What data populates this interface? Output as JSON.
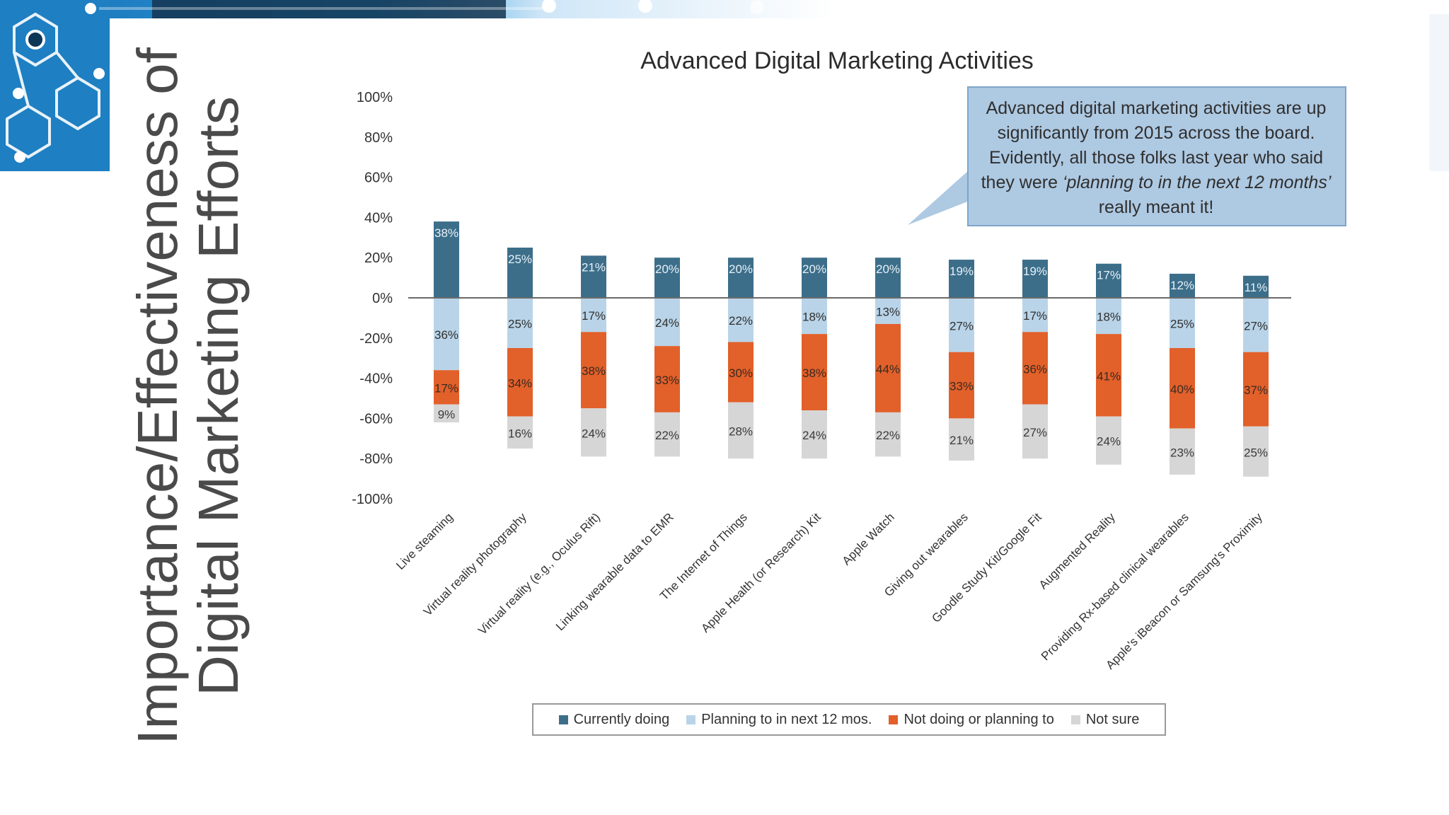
{
  "slide": {
    "title_line1": "Importance/Effectiveness of",
    "title_line2": "Digital Marketing Efforts"
  },
  "callout": {
    "part1": "Advanced digital marketing activities are up significantly from 2015 across the board.  Evidently, all those folks last year who said they were ",
    "emphasis": "‘planning to in the next 12 months’",
    "part2": " really meant it!"
  },
  "colors": {
    "currently_doing": "#3c6e8a",
    "planning": "#b9d4e8",
    "not_doing": "#e2602a",
    "not_sure": "#d6d6d6",
    "callout_fill": "#aec9e2",
    "callout_border": "#7ea6c8"
  },
  "chart_data": {
    "type": "bar",
    "title": "Advanced Digital Marketing Activities",
    "xlabel": "",
    "ylabel": "",
    "ylim": [
      -100,
      100
    ],
    "yticks": [
      "100%",
      "80%",
      "60%",
      "40%",
      "20%",
      "0%",
      "-20%",
      "-40%",
      "-60%",
      "-80%",
      "-100%"
    ],
    "stacked": true,
    "grid": false,
    "legend_position": "bottom",
    "categories": [
      "Live steaming",
      "Virtual reality photography",
      "Virtual reality (e.g., Oculus Rift)",
      "Linking wearable data to EMR",
      "The Internet of Things",
      "Apple Health (or Research) Kit",
      "Apple Watch",
      "Giving out wearables",
      "Goodle Study Kit/Google Fit",
      "Augmented Reality",
      "Providing Rx-based clinical wearables",
      "Apple's iBeacon or Samsung's Proximity"
    ],
    "series": [
      {
        "name": "Currently doing",
        "values": [
          38,
          25,
          21,
          20,
          20,
          20,
          20,
          19,
          19,
          17,
          12,
          11
        ]
      },
      {
        "name": "Planning to in next 12 mos.",
        "values": [
          36,
          25,
          17,
          24,
          22,
          18,
          13,
          27,
          17,
          18,
          25,
          27
        ]
      },
      {
        "name": "Not doing or planning to",
        "values": [
          17,
          34,
          38,
          33,
          30,
          38,
          44,
          33,
          36,
          41,
          40,
          37
        ]
      },
      {
        "name": "Not sure",
        "values": [
          9,
          16,
          24,
          22,
          28,
          24,
          22,
          21,
          27,
          24,
          23,
          25
        ]
      }
    ]
  }
}
